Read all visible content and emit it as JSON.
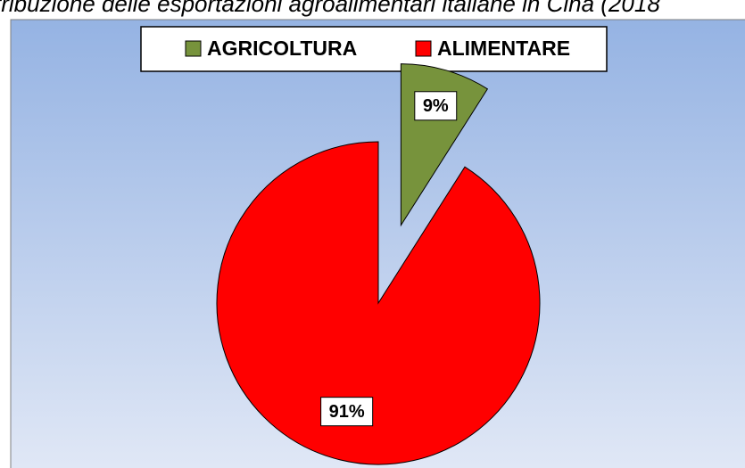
{
  "chart_data": {
    "type": "pie",
    "title": "tribuzione delle esportazioni agroalimentari italiane in Cina (2018",
    "categories": [
      "AGRICOLTURA",
      "ALIMENTARE"
    ],
    "values": [
      9,
      91
    ],
    "value_labels": [
      "9%",
      "91%"
    ],
    "colors": [
      "#77933c",
      "#ff0000"
    ],
    "legend": "top"
  }
}
